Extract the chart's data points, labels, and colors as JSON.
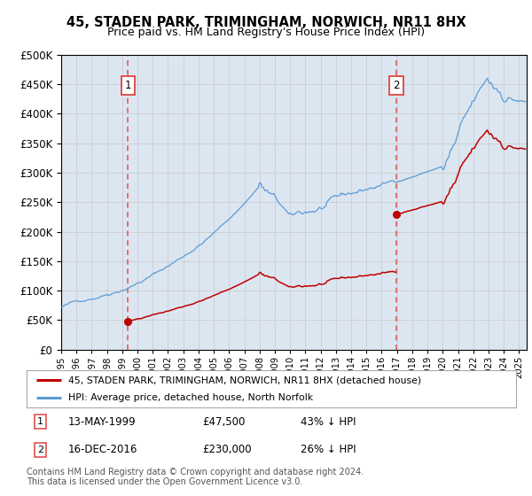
{
  "title1": "45, STADEN PARK, TRIMINGHAM, NORWICH, NR11 8HX",
  "title2": "Price paid vs. HM Land Registry's House Price Index (HPI)",
  "legend_line1": "45, STADEN PARK, TRIMINGHAM, NORWICH, NR11 8HX (detached house)",
  "legend_line2": "HPI: Average price, detached house, North Norfolk",
  "footnote": "Contains HM Land Registry data © Crown copyright and database right 2024.\nThis data is licensed under the Open Government Licence v3.0.",
  "sale1_date": "13-MAY-1999",
  "sale1_price": 47500,
  "sale1_x": 1999.37,
  "sale2_date": "16-DEC-2016",
  "sale2_price": 230000,
  "sale2_x": 2016.96,
  "hpi_color": "#5b9bd5",
  "sale_color": "#c00000",
  "vline_color": "#e05050",
  "background_color": "#dce6f1",
  "plot_bg": "#ffffff",
  "ylim": [
    0,
    500000
  ],
  "xlim": [
    1995.0,
    2025.5
  ],
  "ylabel_ticks": [
    0,
    50000,
    100000,
    150000,
    200000,
    250000,
    300000,
    350000,
    400000,
    450000,
    500000
  ]
}
